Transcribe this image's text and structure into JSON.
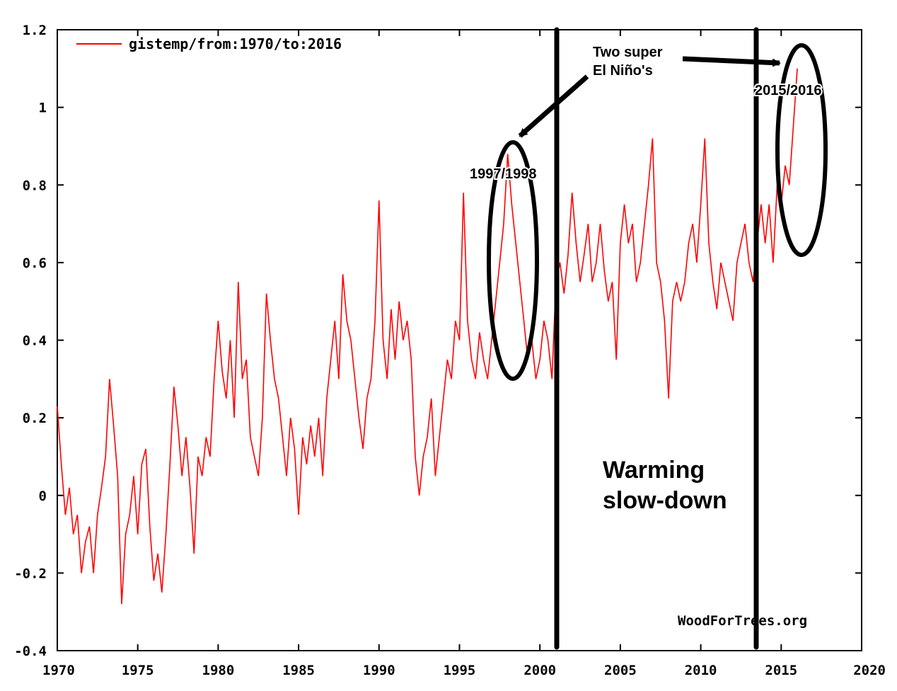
{
  "chart_data": {
    "type": "line",
    "xlim": [
      1970,
      2020
    ],
    "ylim": [
      -0.4,
      1.2
    ],
    "x_ticks": [
      "1970",
      "1975",
      "1980",
      "1985",
      "1990",
      "1995",
      "2000",
      "2005",
      "2010",
      "2015",
      "2020"
    ],
    "y_ticks": [
      "1.2",
      "1",
      "0.8",
      "0.6",
      "0.4",
      "0.2",
      "0",
      "-0.2",
      "-0.4"
    ],
    "legend": {
      "position": "top-left",
      "label": "gistemp/from:1970/to:2016"
    },
    "credit": "WoodForTrees.org",
    "series": [
      {
        "name": "gistemp/from:1970/to:2016",
        "color": "#ff0000",
        "points": [
          [
            1970.0,
            0.23
          ],
          [
            1970.25,
            0.08
          ],
          [
            1970.5,
            -0.05
          ],
          [
            1970.75,
            0.02
          ],
          [
            1971.0,
            -0.1
          ],
          [
            1971.25,
            -0.05
          ],
          [
            1971.5,
            -0.2
          ],
          [
            1971.75,
            -0.12
          ],
          [
            1972.0,
            -0.08
          ],
          [
            1972.25,
            -0.2
          ],
          [
            1972.5,
            -0.05
          ],
          [
            1972.75,
            0.02
          ],
          [
            1973.0,
            0.1
          ],
          [
            1973.25,
            0.3
          ],
          [
            1973.5,
            0.18
          ],
          [
            1973.75,
            0.05
          ],
          [
            1974.0,
            -0.28
          ],
          [
            1974.25,
            -0.1
          ],
          [
            1974.5,
            -0.05
          ],
          [
            1974.75,
            0.05
          ],
          [
            1975.0,
            -0.1
          ],
          [
            1975.25,
            0.08
          ],
          [
            1975.5,
            0.12
          ],
          [
            1975.75,
            -0.08
          ],
          [
            1976.0,
            -0.22
          ],
          [
            1976.25,
            -0.15
          ],
          [
            1976.5,
            -0.25
          ],
          [
            1976.75,
            -0.1
          ],
          [
            1977.0,
            0.08
          ],
          [
            1977.25,
            0.28
          ],
          [
            1977.5,
            0.18
          ],
          [
            1977.75,
            0.05
          ],
          [
            1978.0,
            0.15
          ],
          [
            1978.25,
            0.02
          ],
          [
            1978.5,
            -0.15
          ],
          [
            1978.75,
            0.1
          ],
          [
            1979.0,
            0.05
          ],
          [
            1979.25,
            0.15
          ],
          [
            1979.5,
            0.1
          ],
          [
            1979.75,
            0.3
          ],
          [
            1980.0,
            0.45
          ],
          [
            1980.25,
            0.32
          ],
          [
            1980.5,
            0.25
          ],
          [
            1980.75,
            0.4
          ],
          [
            1981.0,
            0.2
          ],
          [
            1981.25,
            0.55
          ],
          [
            1981.5,
            0.3
          ],
          [
            1981.75,
            0.35
          ],
          [
            1982.0,
            0.15
          ],
          [
            1982.25,
            0.1
          ],
          [
            1982.5,
            0.05
          ],
          [
            1982.75,
            0.2
          ],
          [
            1983.0,
            0.52
          ],
          [
            1983.25,
            0.4
          ],
          [
            1983.5,
            0.3
          ],
          [
            1983.75,
            0.25
          ],
          [
            1984.0,
            0.15
          ],
          [
            1984.25,
            0.05
          ],
          [
            1984.5,
            0.2
          ],
          [
            1984.75,
            0.12
          ],
          [
            1985.0,
            -0.05
          ],
          [
            1985.25,
            0.15
          ],
          [
            1985.5,
            0.08
          ],
          [
            1985.75,
            0.18
          ],
          [
            1986.0,
            0.1
          ],
          [
            1986.25,
            0.2
          ],
          [
            1986.5,
            0.05
          ],
          [
            1986.75,
            0.25
          ],
          [
            1987.0,
            0.35
          ],
          [
            1987.25,
            0.45
          ],
          [
            1987.5,
            0.3
          ],
          [
            1987.75,
            0.57
          ],
          [
            1988.0,
            0.45
          ],
          [
            1988.25,
            0.4
          ],
          [
            1988.5,
            0.3
          ],
          [
            1988.75,
            0.2
          ],
          [
            1989.0,
            0.12
          ],
          [
            1989.25,
            0.25
          ],
          [
            1989.5,
            0.3
          ],
          [
            1989.75,
            0.45
          ],
          [
            1990.0,
            0.76
          ],
          [
            1990.25,
            0.4
          ],
          [
            1990.5,
            0.3
          ],
          [
            1990.75,
            0.48
          ],
          [
            1991.0,
            0.35
          ],
          [
            1991.25,
            0.5
          ],
          [
            1991.5,
            0.4
          ],
          [
            1991.75,
            0.45
          ],
          [
            1992.0,
            0.35
          ],
          [
            1992.25,
            0.1
          ],
          [
            1992.5,
            0.0
          ],
          [
            1992.75,
            0.1
          ],
          [
            1993.0,
            0.15
          ],
          [
            1993.25,
            0.25
          ],
          [
            1993.5,
            0.05
          ],
          [
            1993.75,
            0.15
          ],
          [
            1994.0,
            0.25
          ],
          [
            1994.25,
            0.35
          ],
          [
            1994.5,
            0.3
          ],
          [
            1994.75,
            0.45
          ],
          [
            1995.0,
            0.4
          ],
          [
            1995.25,
            0.78
          ],
          [
            1995.5,
            0.45
          ],
          [
            1995.75,
            0.35
          ],
          [
            1996.0,
            0.3
          ],
          [
            1996.25,
            0.42
          ],
          [
            1996.5,
            0.35
          ],
          [
            1996.75,
            0.3
          ],
          [
            1997.0,
            0.4
          ],
          [
            1997.25,
            0.5
          ],
          [
            1997.5,
            0.6
          ],
          [
            1997.75,
            0.7
          ],
          [
            1998.0,
            0.88
          ],
          [
            1998.25,
            0.75
          ],
          [
            1998.5,
            0.65
          ],
          [
            1998.75,
            0.55
          ],
          [
            1999.0,
            0.45
          ],
          [
            1999.25,
            0.35
          ],
          [
            1999.5,
            0.4
          ],
          [
            1999.75,
            0.3
          ],
          [
            2000.0,
            0.35
          ],
          [
            2000.25,
            0.45
          ],
          [
            2000.5,
            0.4
          ],
          [
            2000.75,
            0.3
          ],
          [
            2001.0,
            0.55
          ],
          [
            2001.25,
            0.6
          ],
          [
            2001.5,
            0.52
          ],
          [
            2001.75,
            0.62
          ],
          [
            2002.0,
            0.78
          ],
          [
            2002.25,
            0.65
          ],
          [
            2002.5,
            0.55
          ],
          [
            2002.75,
            0.62
          ],
          [
            2003.0,
            0.7
          ],
          [
            2003.25,
            0.55
          ],
          [
            2003.5,
            0.6
          ],
          [
            2003.75,
            0.7
          ],
          [
            2004.0,
            0.58
          ],
          [
            2004.25,
            0.5
          ],
          [
            2004.5,
            0.55
          ],
          [
            2004.75,
            0.35
          ],
          [
            2005.0,
            0.65
          ],
          [
            2005.25,
            0.75
          ],
          [
            2005.5,
            0.65
          ],
          [
            2005.75,
            0.7
          ],
          [
            2006.0,
            0.55
          ],
          [
            2006.25,
            0.6
          ],
          [
            2006.5,
            0.7
          ],
          [
            2006.75,
            0.8
          ],
          [
            2007.0,
            0.92
          ],
          [
            2007.25,
            0.6
          ],
          [
            2007.5,
            0.55
          ],
          [
            2007.75,
            0.45
          ],
          [
            2008.0,
            0.25
          ],
          [
            2008.25,
            0.5
          ],
          [
            2008.5,
            0.55
          ],
          [
            2008.75,
            0.5
          ],
          [
            2009.0,
            0.55
          ],
          [
            2009.25,
            0.65
          ],
          [
            2009.5,
            0.7
          ],
          [
            2009.75,
            0.6
          ],
          [
            2010.0,
            0.75
          ],
          [
            2010.25,
            0.92
          ],
          [
            2010.5,
            0.65
          ],
          [
            2010.75,
            0.55
          ],
          [
            2011.0,
            0.48
          ],
          [
            2011.25,
            0.6
          ],
          [
            2011.5,
            0.55
          ],
          [
            2011.75,
            0.5
          ],
          [
            2012.0,
            0.45
          ],
          [
            2012.25,
            0.6
          ],
          [
            2012.5,
            0.65
          ],
          [
            2012.75,
            0.7
          ],
          [
            2013.0,
            0.6
          ],
          [
            2013.25,
            0.55
          ],
          [
            2013.5,
            0.65
          ],
          [
            2013.75,
            0.75
          ],
          [
            2014.0,
            0.65
          ],
          [
            2014.25,
            0.75
          ],
          [
            2014.5,
            0.6
          ],
          [
            2014.75,
            0.8
          ],
          [
            2015.0,
            0.75
          ],
          [
            2015.25,
            0.85
          ],
          [
            2015.5,
            0.8
          ],
          [
            2015.75,
            0.95
          ],
          [
            2016.0,
            1.1
          ]
        ]
      }
    ],
    "annotations": {
      "callout_line1": "Two super",
      "callout_line2": "El Niño's",
      "label_1998": "1997/1998",
      "label_2016": "2015/2016",
      "slowdown_line1": "Warming",
      "slowdown_line2": "slow-down"
    }
  }
}
